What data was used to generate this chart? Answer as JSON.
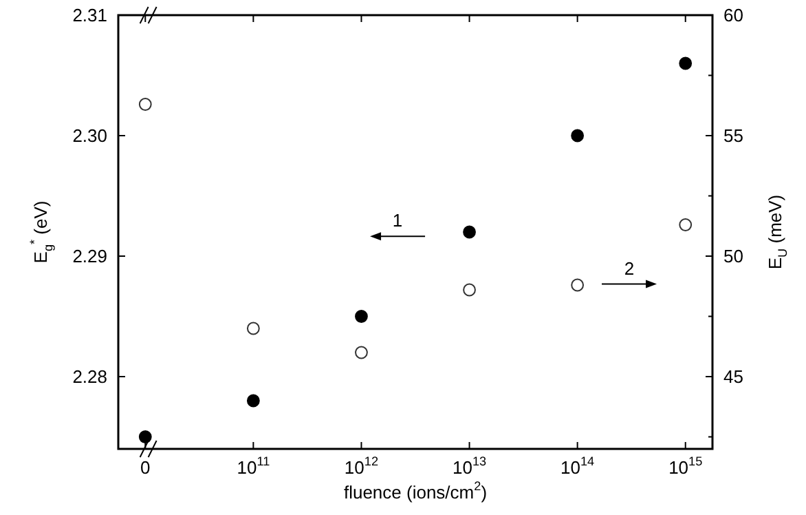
{
  "chart_data": {
    "type": "scatter",
    "xlabel": "fluence (ions/cm$^{2}$)",
    "ylabel": "E$_{g}$$^{*}$ (eV)",
    "y2label": "E$_{U}$ (meV)",
    "categories": [
      "0",
      "10$^{11}$",
      "10$^{12}$",
      "10$^{13}$",
      "10$^{14}$",
      "10$^{15}$"
    ],
    "series": [
      {
        "color": "#000000",
        "values": [
          2.275,
          2.278,
          2.285,
          2.292,
          2.3,
          2.306
        ]
      },
      {
        "color": "#333333",
        "axis": "y2",
        "values": [
          56.3,
          47.0,
          46.0,
          48.6,
          48.8,
          51.3
        ]
      }
    ],
    "ylim": [
      2.274,
      2.31
    ],
    "yticks": [
      2.28,
      2.29,
      {
        "value": 2.3,
        "label": "2.30"
      },
      2.31
    ],
    "y2lim": [
      42,
      60
    ],
    "y2ticks": [
      {
        "value": 42.5,
        "label": null
      },
      45,
      {
        "value": 47.5,
        "label": null
      },
      50,
      {
        "value": 52.5,
        "label": null
      },
      55,
      {
        "value": 57.5,
        "label": null
      },
      60
    ],
    "annotations": [
      "1",
      "2"
    ],
    "marker": "circle",
    "grid": false
  }
}
